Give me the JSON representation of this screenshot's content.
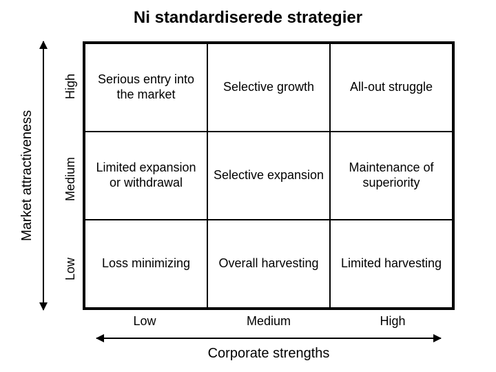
{
  "title": "Ni standardiserede strategier",
  "y_axis": {
    "label": "Market attractiveness",
    "levels": [
      "High",
      "Medium",
      "Low"
    ]
  },
  "x_axis": {
    "label": "Corporate strengths",
    "levels": [
      "Low",
      "Medium",
      "High"
    ]
  },
  "matrix": {
    "type": "grid-3x3",
    "rows": [
      [
        "Serious entry into the market",
        "Selective growth",
        "All-out struggle"
      ],
      [
        "Limited expansion or withdrawal",
        "Selective expansion",
        "Maintenance of superiority"
      ],
      [
        "Loss minimizing",
        "Overall harvesting",
        "Limited harvesting"
      ]
    ]
  },
  "style": {
    "background_color": "#ffffff",
    "border_color": "#000000",
    "text_color": "#000000",
    "title_fontsize": 24,
    "cell_fontsize": 18,
    "axis_label_fontsize": 20,
    "level_label_fontsize": 18,
    "border_width_outer": 3,
    "border_width_inner": 1,
    "font_family": "Arial"
  }
}
